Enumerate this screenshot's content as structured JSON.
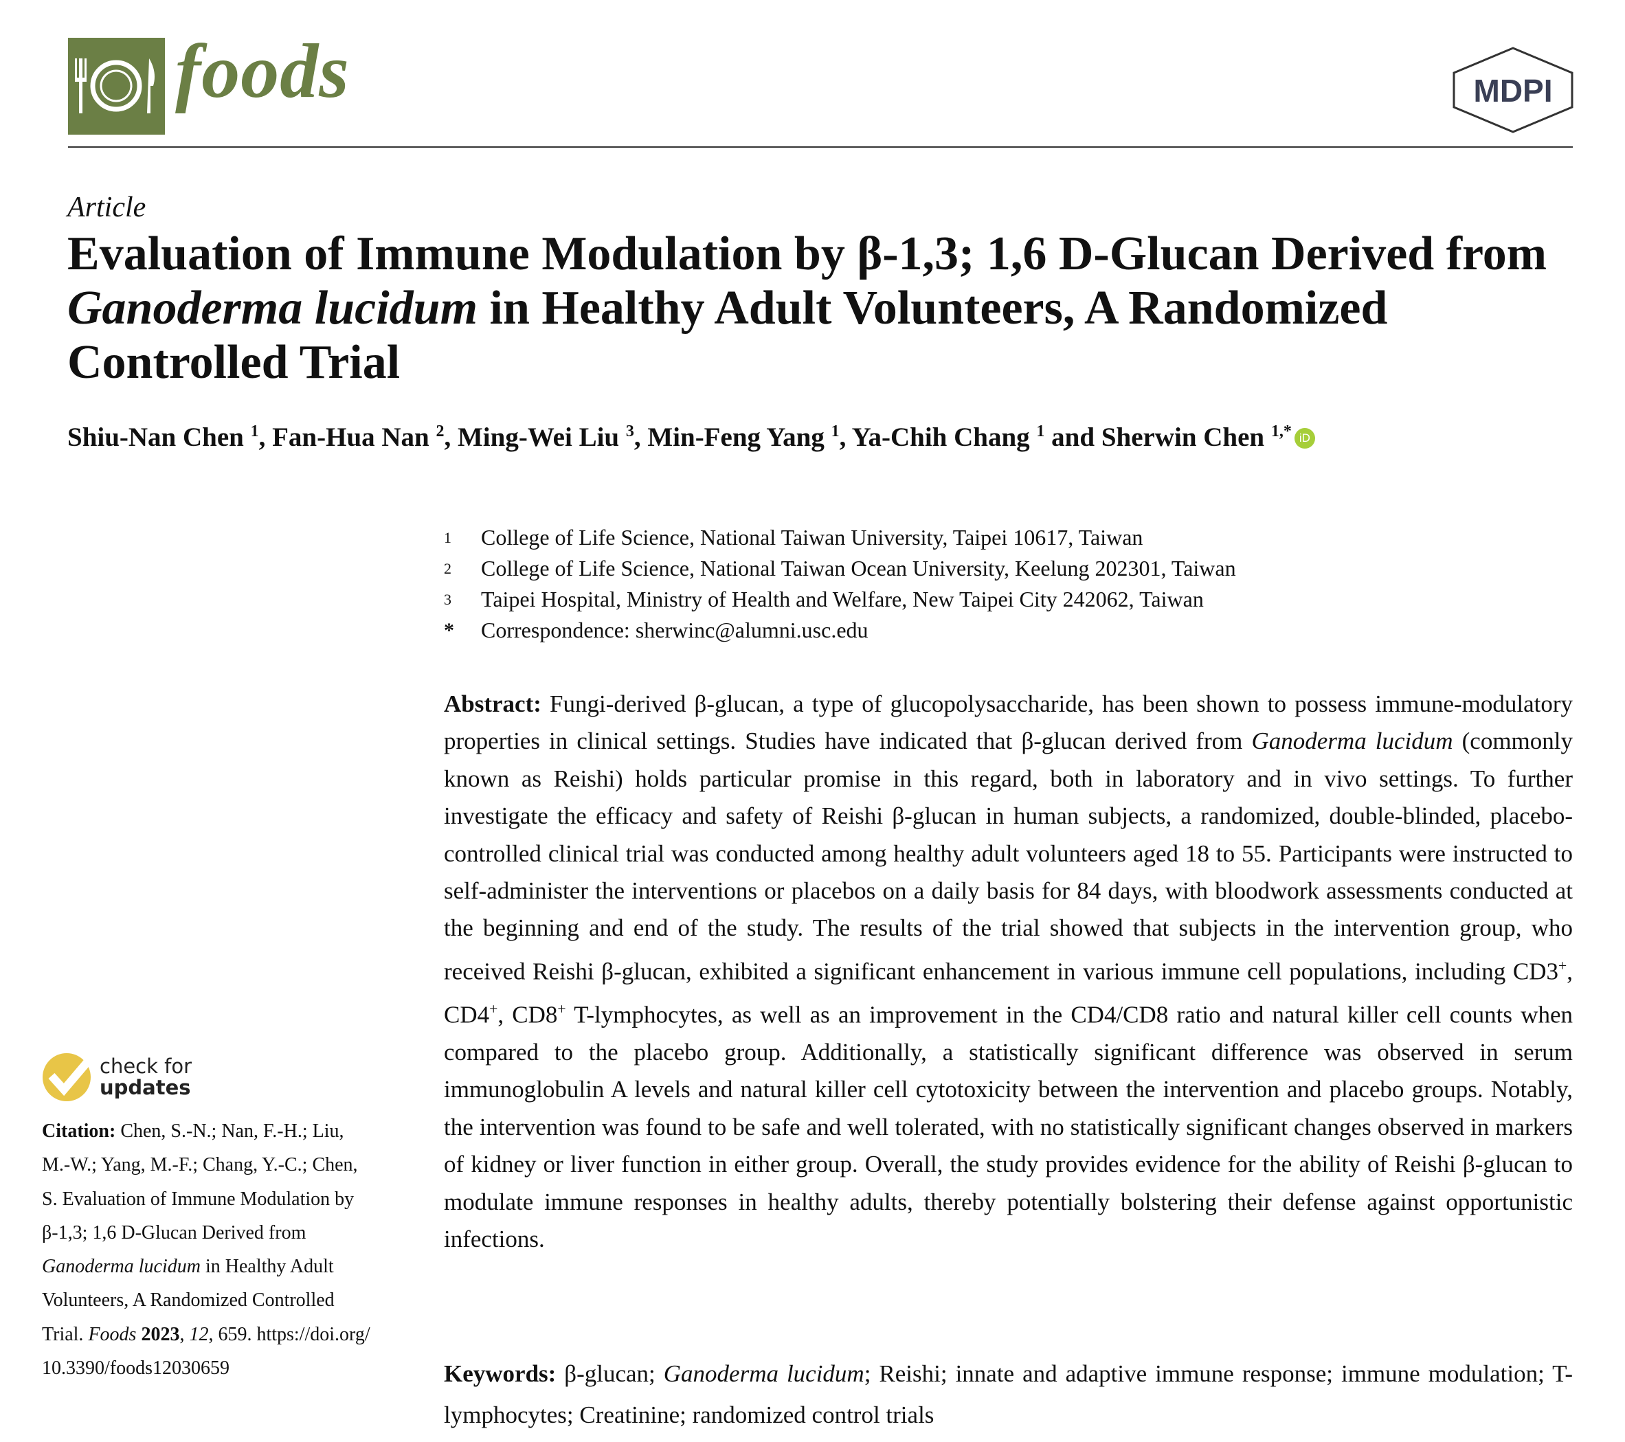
{
  "header": {
    "journal_name": "foods",
    "publisher_logo": "MDPI",
    "brand_color": "#6b7f45",
    "journal_icon": "plate-fork-knife-icon"
  },
  "article_type": "Article",
  "title": {
    "part1": "Evaluation of Immune Modulation by β-1,3; 1,6 D-Glucan Derived from ",
    "italic": "Ganoderma lucidum",
    "part2": " in Healthy Adult Volunteers, A Randomized Controlled Trial"
  },
  "authors": [
    {
      "name": "Shiu-Nan Chen",
      "aff": "1"
    },
    {
      "name": "Fan-Hua Nan",
      "aff": "2"
    },
    {
      "name": "Ming-Wei Liu",
      "aff": "3"
    },
    {
      "name": "Min-Feng Yang",
      "aff": "1"
    },
    {
      "name": "Ya-Chih Chang",
      "aff": "1"
    },
    {
      "name": "Sherwin Chen",
      "aff": "1,*"
    }
  ],
  "authors_sep": ", ",
  "authors_and": " and ",
  "orcid_label": "iD",
  "affiliations": [
    {
      "num": "1",
      "text": "College of Life Science, National Taiwan University, Taipei 10617, Taiwan"
    },
    {
      "num": "2",
      "text": "College of Life Science, National Taiwan Ocean University, Keelung 202301, Taiwan"
    },
    {
      "num": "3",
      "text": "Taipei Hospital, Ministry of Health and Welfare, New Taipei City 242062, Taiwan"
    },
    {
      "num": "*",
      "text": "Correspondence: sherwinc@alumni.usc.edu"
    }
  ],
  "abstract": {
    "label": "Abstract:",
    "t1": " Fungi-derived β-glucan, a type of glucopolysaccharide, has been shown to possess immune-modulatory properties in clinical settings.  Studies have indicated that β-glucan derived from ",
    "i1": "Ganoderma lucidum",
    "t2": " (commonly known as Reishi) holds particular promise in this regard, both in laboratory and in vivo settings.  To further investigate the efficacy and safety of Reishi β-glucan in human subjects, a randomized, double-blinded, placebo-controlled clinical trial was conducted among healthy adult volunteers aged 18 to 55. Participants were instructed to self-administer the interventions or placebos on a daily basis for 84 days, with bloodwork assessments conducted at the beginning and end of the study.  The results of the trial showed that subjects in the intervention group, who received Reishi β-glucan, exhibited a significant enhancement in various immune cell populations, including CD3",
    "sup1": "+",
    "t3": ", CD4",
    "sup2": "+",
    "t4": ", CD8",
    "sup3": "+",
    "t5": " T-lymphocytes, as well as an improvement in the CD4/CD8 ratio and natural killer cell counts when compared to the placebo group. Additionally, a statistically significant difference was observed in serum immunoglobulin A levels and natural killer cell cytotoxicity between the intervention and placebo groups. Notably, the intervention was found to be safe and well tolerated, with no statistically significant changes observed in markers of kidney or liver function in either group. Overall, the study provides evidence for the ability of Reishi β-glucan to modulate immune responses in healthy adults, thereby potentially bolstering their defense against opportunistic infections."
  },
  "keywords": {
    "label": "Keywords:",
    "t1": " β-glucan; ",
    "i1": "Ganoderma lucidum",
    "t2": "; Reishi; innate and adaptive immune response; immune modulation; T-lymphocytes; Creatinine; randomized control trials"
  },
  "check_updates": {
    "line1": "check for",
    "line2": "updates"
  },
  "citation": {
    "label": "Citation:",
    "t1": " Chen, S.-N.; Nan, F.-H.; Liu, M.-W.; Yang, M.-F.; Chang, Y.-C.; Chen, S. Evaluation of Immune Modulation by  β-1,3; 1,6 D-Glucan Derived from ",
    "i1": "Ganoderma lucidum",
    "t2": " in Healthy Adult Volunteers, A Randomized Controlled Trial. ",
    "journal": "Foods",
    "year": "2023",
    "volume": "12",
    "pages": ", 659.  https://doi.org/10.3390/foods12030659"
  }
}
